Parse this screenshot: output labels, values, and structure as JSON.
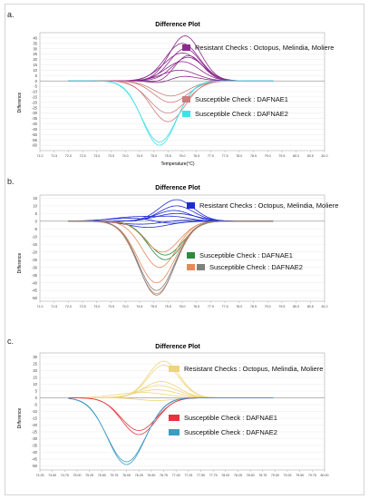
{
  "figure": {
    "panels": [
      {
        "letter": "a.",
        "title": "Difference Plot",
        "ylabel": "Difference",
        "xlabel": "Temperature(°C)"
      },
      {
        "letter": "b.",
        "title": "Difference Plot",
        "ylabel": "Difference",
        "xlabel": "Temperature(°C)"
      },
      {
        "letter": "c.",
        "title": "Difference Plot",
        "ylabel": "Difference",
        "xlabel": "Temperature(°C)"
      }
    ]
  },
  "chart_data": [
    {
      "type": "line",
      "title": "Difference Plot",
      "xlabel": "Temperature(°C)",
      "ylabel": "Difference",
      "xlim": [
        71.0,
        81.0
      ],
      "ylim": [
        -65,
        45
      ],
      "xticks": [
        "71.0",
        "71.5",
        "72.0",
        "72.5",
        "73.0",
        "73.5",
        "74.0",
        "74.5",
        "75.0",
        "75.5",
        "76.0",
        "76.5",
        "77.0",
        "77.5",
        "78.0",
        "78.5",
        "79.0",
        "79.5",
        "80.0",
        "80.5",
        "81.0"
      ],
      "yticks": [
        40,
        35,
        30,
        25,
        20,
        15,
        10,
        5,
        0,
        -5,
        -10,
        -15,
        -20,
        -25,
        -30,
        -35,
        -40,
        -45,
        -50,
        -55,
        -60
      ],
      "legend": [
        {
          "label": "Resistant Checks : Octopus, Melindia, Moliere",
          "colors": [
            "#8B2C8B"
          ]
        },
        {
          "label": "Susceptible Check :  DAFNAE1",
          "colors": [
            "#CD7C7C"
          ]
        },
        {
          "label": "Susceptible Check :  DAFNAE2",
          "colors": [
            "#3EE3E8"
          ]
        }
      ],
      "series": [
        {
          "group": "resistant",
          "color": "#8B2C8B",
          "peaks": [
            {
              "x": 76.1,
              "amp": 42,
              "w": 0.55
            }
          ]
        },
        {
          "group": "resistant",
          "color": "#8B2C8B",
          "peaks": [
            {
              "x": 76.0,
              "amp": 35,
              "w": 0.6
            }
          ]
        },
        {
          "group": "resistant",
          "color": "#8B2C8B",
          "peaks": [
            {
              "x": 76.1,
              "amp": 30,
              "w": 0.55
            }
          ]
        },
        {
          "group": "resistant",
          "color": "#8B2C8B",
          "peaks": [
            {
              "x": 76.0,
              "amp": 26,
              "w": 0.65
            }
          ]
        },
        {
          "group": "resistant",
          "color": "#8B2C8B",
          "peaks": [
            {
              "x": 76.2,
              "amp": 22,
              "w": 0.55
            }
          ]
        },
        {
          "group": "resistant",
          "color": "#8B2C8B",
          "peaks": [
            {
              "x": 76.0,
              "amp": 18,
              "w": 0.6
            }
          ]
        },
        {
          "group": "resistant",
          "color": "#8B2C8B",
          "peaks": [
            {
              "x": 75.9,
              "amp": 10,
              "w": 0.6
            }
          ]
        },
        {
          "group": "resistant",
          "color": "#8B2C8B",
          "peaks": [
            {
              "x": 75.9,
              "amp": 5,
              "w": 0.6
            },
            {
              "x": 75.3,
              "amp": -4,
              "w": 0.4
            }
          ]
        },
        {
          "group": "resistant",
          "color": "#8B2C8B",
          "peaks": [
            {
              "x": 76.2,
              "amp": 24,
              "w": 0.5
            },
            {
              "x": 75.4,
              "amp": -3,
              "w": 0.4
            }
          ]
        },
        {
          "group": "dafnae1",
          "color": "#CD7C7C",
          "peaks": [
            {
              "x": 75.5,
              "amp": -38,
              "w": 0.6
            }
          ]
        },
        {
          "group": "dafnae1",
          "color": "#CD7C7C",
          "peaks": [
            {
              "x": 75.5,
              "amp": -30,
              "w": 0.65
            }
          ]
        },
        {
          "group": "dafnae1",
          "color": "#CD7C7C",
          "peaks": [
            {
              "x": 75.6,
              "amp": -20,
              "w": 0.6
            }
          ]
        },
        {
          "group": "dafnae1",
          "color": "#CD7C7C",
          "peaks": [
            {
              "x": 75.6,
              "amp": -14,
              "w": 0.6
            }
          ]
        },
        {
          "group": "dafnae2",
          "color": "#3EE3E8",
          "peaks": [
            {
              "x": 75.2,
              "amp": -60,
              "w": 0.6
            }
          ]
        },
        {
          "group": "dafnae2",
          "color": "#3EE3E8",
          "peaks": [
            {
              "x": 75.2,
              "amp": -57,
              "w": 0.62
            }
          ]
        }
      ]
    },
    {
      "type": "line",
      "title": "Difference Plot",
      "xlabel": "Temperature(°C)",
      "ylabel": "Difference",
      "xlim": [
        71.0,
        81.0
      ],
      "ylim": [
        -52,
        17
      ],
      "xticks": [
        "71.0",
        "71.5",
        "72.0",
        "72.5",
        "73.0",
        "73.5",
        "74.0",
        "74.5",
        "75.0",
        "75.5",
        "76.0",
        "76.5",
        "77.0",
        "77.5",
        "78.0",
        "78.5",
        "79.0",
        "79.5",
        "80.0",
        "80.5",
        "81.0"
      ],
      "yticks": [
        15,
        10,
        5,
        0,
        -5,
        -10,
        -15,
        -20,
        -25,
        -30,
        -35,
        -40,
        -45,
        -50
      ],
      "legend": [
        {
          "label": "Resistant Checks : Octopus, Melindia, Moliere",
          "colors": [
            "#1F2BD1"
          ]
        },
        {
          "label": "Susceptible Check :  DAFNAE1",
          "colors": [
            "#2E8B3E"
          ]
        },
        {
          "label": "Susceptible Check :  DAFNAE2",
          "colors": [
            "#E58A5C",
            "#7F7F7F"
          ]
        }
      ],
      "series": [
        {
          "group": "resistant",
          "color": "#1F2BD1",
          "peaks": [
            {
              "x": 75.8,
              "amp": 14,
              "w": 0.6
            }
          ]
        },
        {
          "group": "resistant",
          "color": "#1F2BD1",
          "peaks": [
            {
              "x": 75.8,
              "amp": 10,
              "w": 0.6
            }
          ]
        },
        {
          "group": "resistant",
          "color": "#1F2BD1",
          "peaks": [
            {
              "x": 75.7,
              "amp": 7,
              "w": 0.6
            }
          ]
        },
        {
          "group": "resistant",
          "color": "#1F2BD1",
          "peaks": [
            {
              "x": 75.8,
              "amp": 5,
              "w": 0.7
            }
          ]
        },
        {
          "group": "resistant",
          "color": "#1F2BD1",
          "peaks": [
            {
              "x": 74.5,
              "amp": 3,
              "w": 0.9
            },
            {
              "x": 75.8,
              "amp": 2,
              "w": 0.5
            }
          ]
        },
        {
          "group": "resistant",
          "color": "#1F2BD1",
          "peaks": [
            {
              "x": 74.3,
              "amp": 2,
              "w": 0.9
            },
            {
              "x": 75.5,
              "amp": -2,
              "w": 0.5
            }
          ]
        },
        {
          "group": "resistant",
          "color": "#1F2BD1",
          "peaks": [
            {
              "x": 74.6,
              "amp": -2,
              "w": 0.8
            },
            {
              "x": 75.9,
              "amp": 1,
              "w": 0.6
            }
          ]
        },
        {
          "group": "resistant",
          "color": "#1F2BD1",
          "peaks": [
            {
              "x": 74.8,
              "amp": -4,
              "w": 0.7
            }
          ]
        },
        {
          "group": "dafnae1",
          "color": "#2E8B3E",
          "peaks": [
            {
              "x": 75.4,
              "amp": -25,
              "w": 0.6
            }
          ]
        },
        {
          "group": "dafnae1",
          "color": "#2E8B3E",
          "peaks": [
            {
              "x": 75.4,
              "amp": -22,
              "w": 0.62
            }
          ]
        },
        {
          "group": "dafnae2",
          "color": "#E58A5C",
          "peaks": [
            {
              "x": 75.1,
              "amp": -47,
              "w": 0.65
            }
          ]
        },
        {
          "group": "dafnae2",
          "color": "#E58A5C",
          "peaks": [
            {
              "x": 75.1,
              "amp": -40,
              "w": 0.65
            }
          ]
        },
        {
          "group": "dafnae2",
          "color": "#E58A5C",
          "peaks": [
            {
              "x": 75.2,
              "amp": -30,
              "w": 0.6
            }
          ]
        },
        {
          "group": "dafnae2",
          "color": "#E58A5C",
          "peaks": [
            {
              "x": 75.3,
              "amp": -20,
              "w": 0.6
            }
          ]
        },
        {
          "group": "dafnae2",
          "color": "#7F7F7F",
          "peaks": [
            {
              "x": 75.1,
              "amp": -48,
              "w": 0.63
            }
          ]
        },
        {
          "group": "dafnae2",
          "color": "#7F7F7F",
          "peaks": [
            {
              "x": 75.1,
              "amp": -45,
              "w": 0.64
            }
          ]
        }
      ]
    },
    {
      "type": "line",
      "title": "Difference Plot",
      "xlabel": "Temperature(°C)",
      "ylabel": "Difference",
      "xlim": [
        74.25,
        80.0
      ],
      "ylim": [
        -53,
        33
      ],
      "xticks": [
        "74.25",
        "74.50",
        "74.75",
        "75.00",
        "75.25",
        "75.50",
        "75.75",
        "76.00",
        "76.25",
        "76.50",
        "76.75",
        "77.00",
        "77.25",
        "77.50",
        "77.75",
        "78.00",
        "78.25",
        "78.50",
        "78.75",
        "79.00",
        "79.25",
        "79.50",
        "79.75",
        "80.00"
      ],
      "yticks": [
        30,
        25,
        20,
        15,
        10,
        5,
        0,
        -5,
        -10,
        -15,
        -20,
        -25,
        -30,
        -35,
        -40,
        -45,
        -50
      ],
      "legend": [
        {
          "label": "Resistant Checks : Octopus, Melindia, Moliere",
          "colors": [
            "#EFD57A"
          ]
        },
        {
          "label": "Susceptible Check :  DAFNAE1",
          "colors": [
            "#E5333F"
          ]
        },
        {
          "label": "Susceptible Check :  DAFNAE2",
          "colors": [
            "#3A9BC4"
          ]
        }
      ],
      "series": [
        {
          "group": "resistant",
          "color": "#EFD57A",
          "peaks": [
            {
              "x": 76.75,
              "amp": 27,
              "w": 0.32
            }
          ]
        },
        {
          "group": "resistant",
          "color": "#EFD57A",
          "peaks": [
            {
              "x": 76.75,
              "amp": 24,
              "w": 0.32
            }
          ]
        },
        {
          "group": "resistant",
          "color": "#EFD57A",
          "peaks": [
            {
              "x": 76.7,
              "amp": 12,
              "w": 0.35
            }
          ]
        },
        {
          "group": "resistant",
          "color": "#EFD57A",
          "peaks": [
            {
              "x": 76.65,
              "amp": 9,
              "w": 0.38
            }
          ]
        },
        {
          "group": "resistant",
          "color": "#EFD57A",
          "peaks": [
            {
              "x": 76.6,
              "amp": 6,
              "w": 0.4
            }
          ]
        },
        {
          "group": "resistant",
          "color": "#EFD57A",
          "peaks": [
            {
              "x": 76.3,
              "amp": 4,
              "w": 0.5
            }
          ]
        },
        {
          "group": "resistant",
          "color": "#EFD57A",
          "peaks": [
            {
              "x": 76.6,
              "amp": -2,
              "w": 0.35
            }
          ]
        },
        {
          "group": "dafnae1",
          "color": "#E5333F",
          "peaks": [
            {
              "x": 76.25,
              "amp": -27,
              "w": 0.35
            }
          ]
        },
        {
          "group": "dafnae1",
          "color": "#E5333F",
          "peaks": [
            {
              "x": 76.25,
              "amp": -24,
              "w": 0.36
            }
          ]
        },
        {
          "group": "dafnae2",
          "color": "#3A9BC4",
          "peaks": [
            {
              "x": 76.0,
              "amp": -49,
              "w": 0.38
            }
          ]
        },
        {
          "group": "dafnae2",
          "color": "#3A9BC4",
          "peaks": [
            {
              "x": 76.0,
              "amp": -47,
              "w": 0.39
            }
          ]
        }
      ]
    }
  ]
}
